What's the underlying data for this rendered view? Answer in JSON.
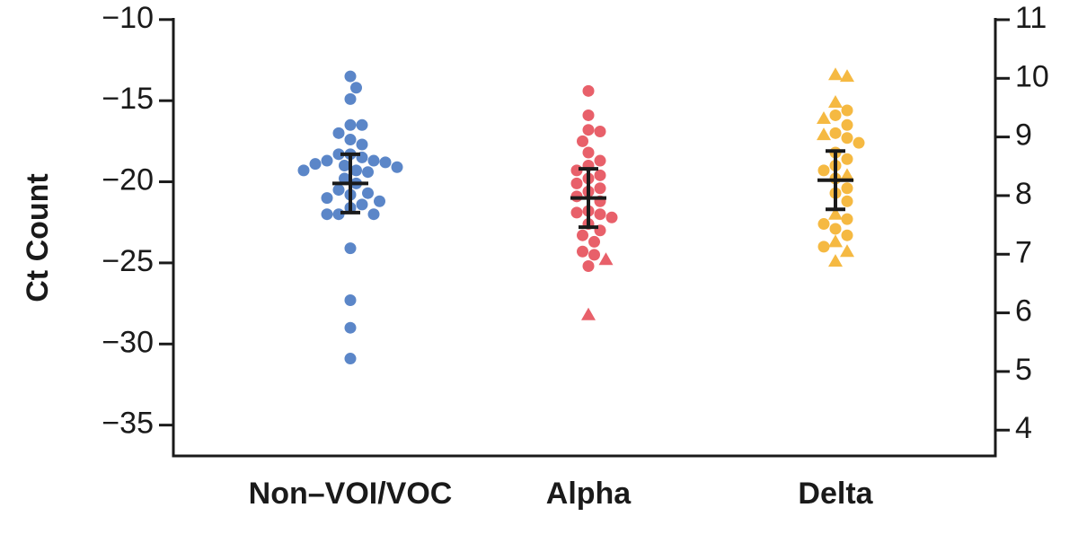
{
  "chart_data": {
    "type": "strip",
    "y_label": "Ct Count",
    "categories": [
      "Non–VOI/VOC",
      "Alpha",
      "Delta"
    ],
    "ylim": [
      -36.9,
      -9.9
    ],
    "yticks": [
      -10,
      -15,
      -20,
      -25,
      -30,
      -35
    ],
    "y2lim": [
      3.56,
      11.03
    ],
    "y2ticks": [
      4,
      5,
      6,
      7,
      8,
      9,
      10,
      11
    ],
    "series": [
      {
        "name": "Non–VOI/VOC",
        "color": "#5b86c8",
        "values": [
          -13.5,
          -14.2,
          -14.9,
          -16.5,
          -16.5,
          -17.0,
          -17.4,
          -17.7,
          -18.3,
          -18.3,
          -18.5,
          -18.7,
          -18.7,
          -18.8,
          -18.9,
          -19.0,
          -19.1,
          -19.3,
          -19.3,
          -19.4,
          -19.8,
          -20.1,
          -20.5,
          -20.7,
          -20.8,
          -21.0,
          -21.2,
          -21.4,
          -21.6,
          -22.0,
          -22.0,
          -22.0,
          -24.1,
          -27.3,
          -29.0,
          -30.9
        ],
        "markers": [
          "o",
          "o",
          "o",
          "o",
          "o",
          "o",
          "o",
          "o",
          "o",
          "o",
          "o",
          "o",
          "o",
          "o",
          "o",
          "o",
          "o",
          "o",
          "o",
          "o",
          "o",
          "o",
          "o",
          "o",
          "o",
          "o",
          "o",
          "o",
          "o",
          "o",
          "o",
          "o",
          "o",
          "o",
          "o",
          "o"
        ],
        "mean": -20.1,
        "error": 1.8
      },
      {
        "name": "Alpha",
        "color": "#e8606a",
        "values": [
          -14.4,
          -15.9,
          -16.8,
          -16.9,
          -17.5,
          -18.2,
          -18.7,
          -19.0,
          -19.3,
          -19.6,
          -19.8,
          -20.1,
          -20.4,
          -20.6,
          -20.9,
          -21.2,
          -21.8,
          -21.9,
          -22.0,
          -22.2,
          -22.6,
          -23.0,
          -23.3,
          -23.7,
          -24.3,
          -24.5,
          -24.8,
          -25.2,
          -28.2
        ],
        "markers": [
          "o",
          "o",
          "o",
          "o",
          "o",
          "o",
          "o",
          "o",
          "o",
          "o",
          "o",
          "o",
          "o",
          "o",
          "o",
          "o",
          "o",
          "o",
          "o",
          "o",
          "o",
          "o",
          "o",
          "o",
          "o",
          "o",
          "^",
          "o",
          "^"
        ],
        "mean": -21.0,
        "error": 1.8
      },
      {
        "name": "Delta",
        "color": "#f5b942",
        "values": [
          -13.4,
          -13.5,
          -15.1,
          -15.6,
          -15.9,
          -16.1,
          -16.5,
          -17.0,
          -17.1,
          -17.3,
          -17.6,
          -18.2,
          -18.6,
          -19.0,
          -19.3,
          -19.6,
          -19.8,
          -20.4,
          -20.7,
          -21.2,
          -22.0,
          -22.3,
          -22.6,
          -22.9,
          -23.3,
          -23.7,
          -24.0,
          -24.3,
          -24.9
        ],
        "markers": [
          "^",
          "^",
          "^",
          "o",
          "o",
          "^",
          "o",
          "o",
          "^",
          "o",
          "o",
          "o",
          "o",
          "o",
          "o",
          "^",
          "o",
          "o",
          "o",
          "o",
          "^",
          "o",
          "o",
          "o",
          "o",
          "^",
          "o",
          "^",
          "^"
        ],
        "mean": -19.9,
        "error": 1.8
      }
    ]
  }
}
